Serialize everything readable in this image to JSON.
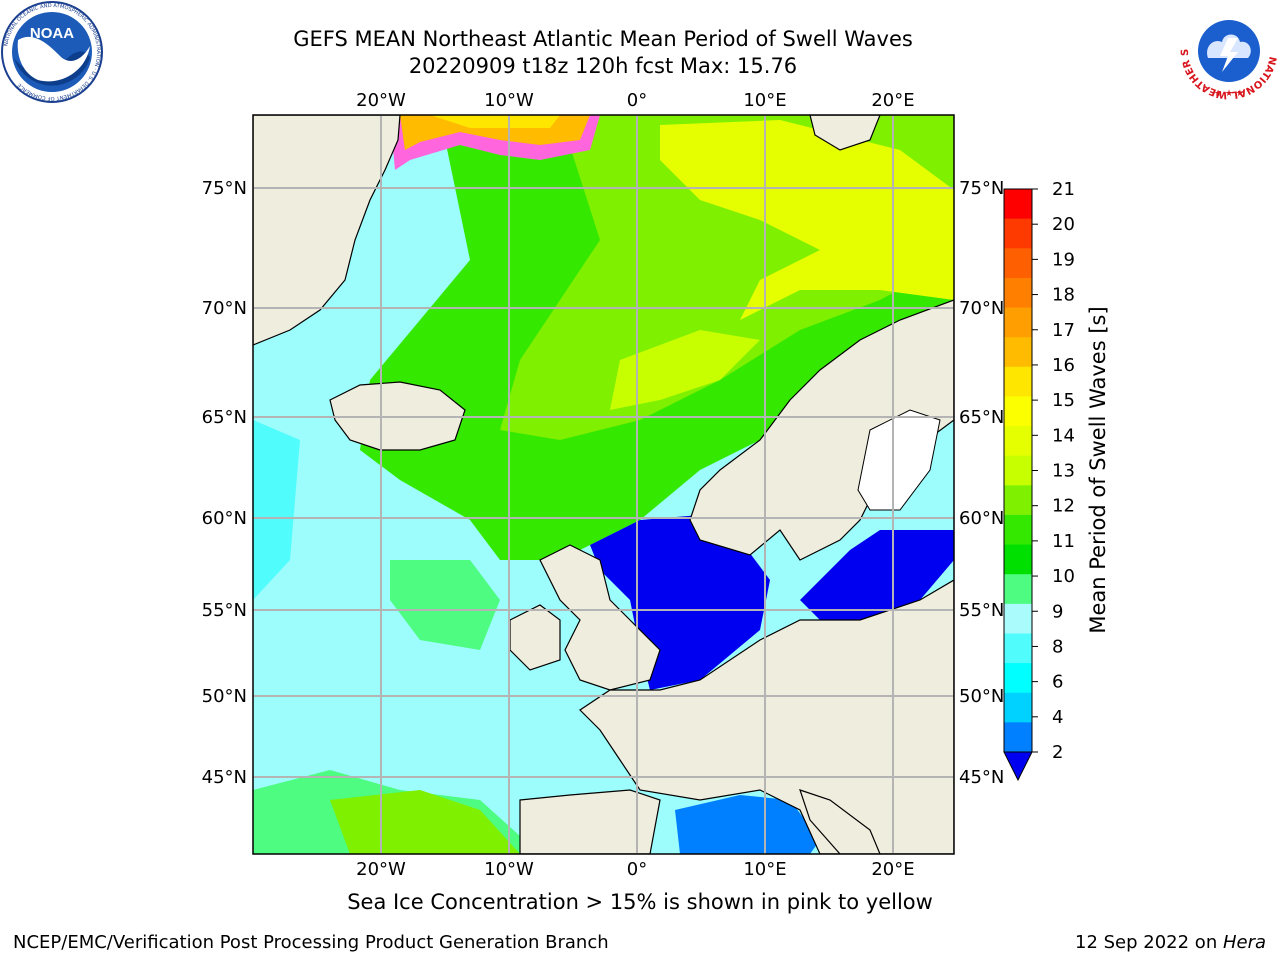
{
  "header": {
    "title_line1": "GEFS MEAN Northeast Atlantic Mean Period of Swell Waves",
    "title_line2": "20220909 t18z 120h fcst   Max: 15.76"
  },
  "logos": {
    "noaa": {
      "text": "NOAA",
      "ring_text": "NATIONAL OCEANIC AND ATMOSPHERIC ADMINISTRATION · U.S. DEPARTMENT OF COMMERCE"
    },
    "nws": {
      "ring_text": "NATIONAL WEATHER SERVICE"
    }
  },
  "map": {
    "lon_labels": [
      "20°W",
      "10°W",
      "0°",
      "10°E",
      "20°E"
    ],
    "lat_labels": [
      "75°N",
      "70°N",
      "65°N",
      "60°N",
      "55°N",
      "50°N",
      "45°N"
    ],
    "colors": {
      "ocean_base": "#9dfcfc",
      "land": "#efedde",
      "ice": "#ffffff",
      "grid": "#b4b4b4"
    }
  },
  "colorbar": {
    "label": "Mean Period of Swell Waves [s]",
    "ticks": [
      "21",
      "20",
      "19",
      "18",
      "17",
      "16",
      "15",
      "14",
      "13",
      "12",
      "11",
      "10",
      "9",
      "8",
      "6",
      "4",
      "2"
    ],
    "colors": [
      "#fe0000",
      "#fe3a00",
      "#fe5f00",
      "#ff8000",
      "#ff9e00",
      "#ffbb00",
      "#ffe600",
      "#fbff00",
      "#e6ff00",
      "#c8ff00",
      "#7ff000",
      "#34e800",
      "#00e000",
      "#4dfc80",
      "#aafcfc",
      "#51fcfc",
      "#00ffff",
      "#00d2ff",
      "#0080ff"
    ],
    "extend_color": "#0000f0"
  },
  "footer": {
    "ice_note": "Sea Ice Concentration > 15% is shown in pink to yellow",
    "credit": "NCEP/EMC/Verification Post Processing Product Generation Branch",
    "date_prefix": "12 Sep 2022 on ",
    "host": "Hera"
  }
}
